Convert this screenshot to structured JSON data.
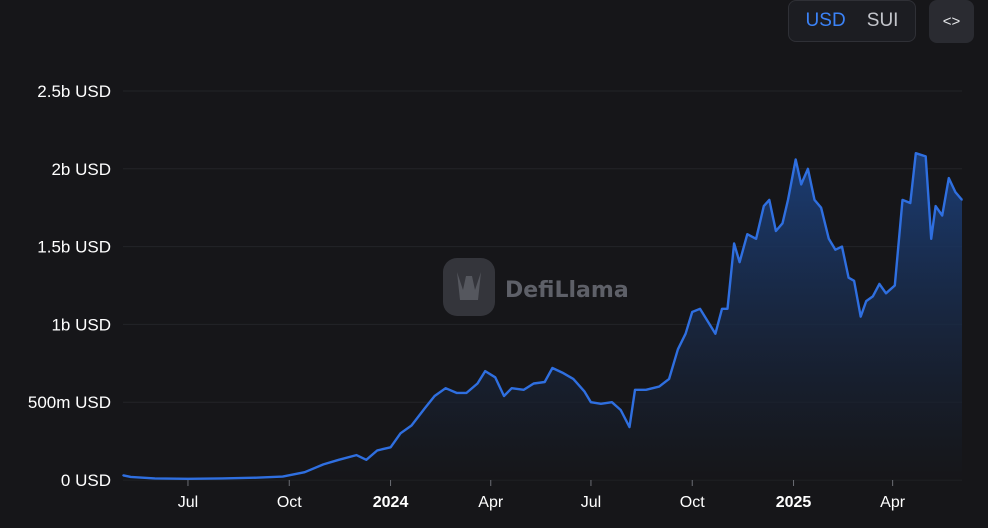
{
  "toggle": {
    "options": [
      "USD",
      "SUI"
    ],
    "selected": "USD"
  },
  "embed_icon": "code-brackets-icon",
  "embed_label": "<>",
  "watermark": {
    "text": "DefiLlama",
    "icon": "llama-logo-icon"
  },
  "colors": {
    "background": "#161619",
    "line": "#2f6fe0",
    "area_top": "#1b3f7a",
    "area_bottom": "#161619",
    "grid": "#232428"
  },
  "chart_data": {
    "type": "area",
    "title": "",
    "xlabel": "",
    "ylabel": "",
    "grid": true,
    "ylim": [
      0,
      2500000000
    ],
    "yticks": [
      {
        "value": 0,
        "label": "0 USD"
      },
      {
        "value": 500000000,
        "label": "500m USD"
      },
      {
        "value": 1000000000,
        "label": "1b USD"
      },
      {
        "value": 1500000000,
        "label": "1.5b USD"
      },
      {
        "value": 2000000000,
        "label": "2b USD"
      },
      {
        "value": 2500000000,
        "label": "2.5b USD"
      }
    ],
    "xticks": [
      {
        "date": "2023-07-01",
        "label": "Jul",
        "bold": false
      },
      {
        "date": "2023-10-01",
        "label": "Oct",
        "bold": false
      },
      {
        "date": "2024-01-01",
        "label": "2024",
        "bold": true
      },
      {
        "date": "2024-04-01",
        "label": "Apr",
        "bold": false
      },
      {
        "date": "2024-07-01",
        "label": "Jul",
        "bold": false
      },
      {
        "date": "2024-10-01",
        "label": "Oct",
        "bold": false
      },
      {
        "date": "2025-01-01",
        "label": "2025",
        "bold": true
      },
      {
        "date": "2025-04-01",
        "label": "Apr",
        "bold": false
      }
    ],
    "xlim": [
      "2023-05-03",
      "2025-06-03"
    ],
    "series": [
      {
        "values": [
          [
            "2023-05-03",
            30000000
          ],
          [
            "2023-05-10",
            20000000
          ],
          [
            "2023-06-01",
            10000000
          ],
          [
            "2023-07-01",
            8000000
          ],
          [
            "2023-08-01",
            10000000
          ],
          [
            "2023-09-01",
            15000000
          ],
          [
            "2023-09-25",
            22000000
          ],
          [
            "2023-10-15",
            50000000
          ],
          [
            "2023-11-01",
            100000000
          ],
          [
            "2023-11-15",
            130000000
          ],
          [
            "2023-12-01",
            160000000
          ],
          [
            "2023-12-10",
            130000000
          ],
          [
            "2023-12-20",
            190000000
          ],
          [
            "2024-01-01",
            210000000
          ],
          [
            "2024-01-10",
            300000000
          ],
          [
            "2024-01-20",
            350000000
          ],
          [
            "2024-02-01",
            460000000
          ],
          [
            "2024-02-10",
            540000000
          ],
          [
            "2024-02-20",
            590000000
          ],
          [
            "2024-03-01",
            560000000
          ],
          [
            "2024-03-10",
            560000000
          ],
          [
            "2024-03-20",
            620000000
          ],
          [
            "2024-03-27",
            700000000
          ],
          [
            "2024-04-05",
            660000000
          ],
          [
            "2024-04-13",
            540000000
          ],
          [
            "2024-04-20",
            590000000
          ],
          [
            "2024-05-01",
            580000000
          ],
          [
            "2024-05-10",
            620000000
          ],
          [
            "2024-05-20",
            630000000
          ],
          [
            "2024-05-27",
            720000000
          ],
          [
            "2024-06-05",
            690000000
          ],
          [
            "2024-06-15",
            650000000
          ],
          [
            "2024-06-25",
            570000000
          ],
          [
            "2024-07-01",
            500000000
          ],
          [
            "2024-07-10",
            490000000
          ],
          [
            "2024-07-20",
            500000000
          ],
          [
            "2024-07-28",
            450000000
          ],
          [
            "2024-08-05",
            340000000
          ],
          [
            "2024-08-10",
            580000000
          ],
          [
            "2024-08-20",
            580000000
          ],
          [
            "2024-09-01",
            600000000
          ],
          [
            "2024-09-10",
            650000000
          ],
          [
            "2024-09-18",
            840000000
          ],
          [
            "2024-09-25",
            940000000
          ],
          [
            "2024-10-01",
            1080000000
          ],
          [
            "2024-10-08",
            1100000000
          ],
          [
            "2024-10-15",
            1020000000
          ],
          [
            "2024-10-22",
            940000000
          ],
          [
            "2024-10-28",
            1100000000
          ],
          [
            "2024-11-02",
            1100000000
          ],
          [
            "2024-11-08",
            1520000000
          ],
          [
            "2024-11-13",
            1400000000
          ],
          [
            "2024-11-20",
            1580000000
          ],
          [
            "2024-11-28",
            1550000000
          ],
          [
            "2024-12-05",
            1760000000
          ],
          [
            "2024-12-10",
            1800000000
          ],
          [
            "2024-12-16",
            1600000000
          ],
          [
            "2024-12-22",
            1650000000
          ],
          [
            "2024-12-27",
            1800000000
          ],
          [
            "2025-01-03",
            2060000000
          ],
          [
            "2025-01-08",
            1900000000
          ],
          [
            "2025-01-14",
            2000000000
          ],
          [
            "2025-01-20",
            1800000000
          ],
          [
            "2025-01-26",
            1750000000
          ],
          [
            "2025-02-02",
            1550000000
          ],
          [
            "2025-02-08",
            1480000000
          ],
          [
            "2025-02-14",
            1500000000
          ],
          [
            "2025-02-20",
            1300000000
          ],
          [
            "2025-02-25",
            1280000000
          ],
          [
            "2025-03-03",
            1050000000
          ],
          [
            "2025-03-08",
            1150000000
          ],
          [
            "2025-03-14",
            1180000000
          ],
          [
            "2025-03-20",
            1260000000
          ],
          [
            "2025-03-26",
            1200000000
          ],
          [
            "2025-04-03",
            1250000000
          ],
          [
            "2025-04-10",
            1800000000
          ],
          [
            "2025-04-17",
            1780000000
          ],
          [
            "2025-04-22",
            2100000000
          ],
          [
            "2025-05-01",
            2080000000
          ],
          [
            "2025-05-06",
            1550000000
          ],
          [
            "2025-05-10",
            1760000000
          ],
          [
            "2025-05-16",
            1700000000
          ],
          [
            "2025-05-22",
            1940000000
          ],
          [
            "2025-05-28",
            1850000000
          ],
          [
            "2025-06-03",
            1800000000
          ]
        ]
      }
    ]
  }
}
